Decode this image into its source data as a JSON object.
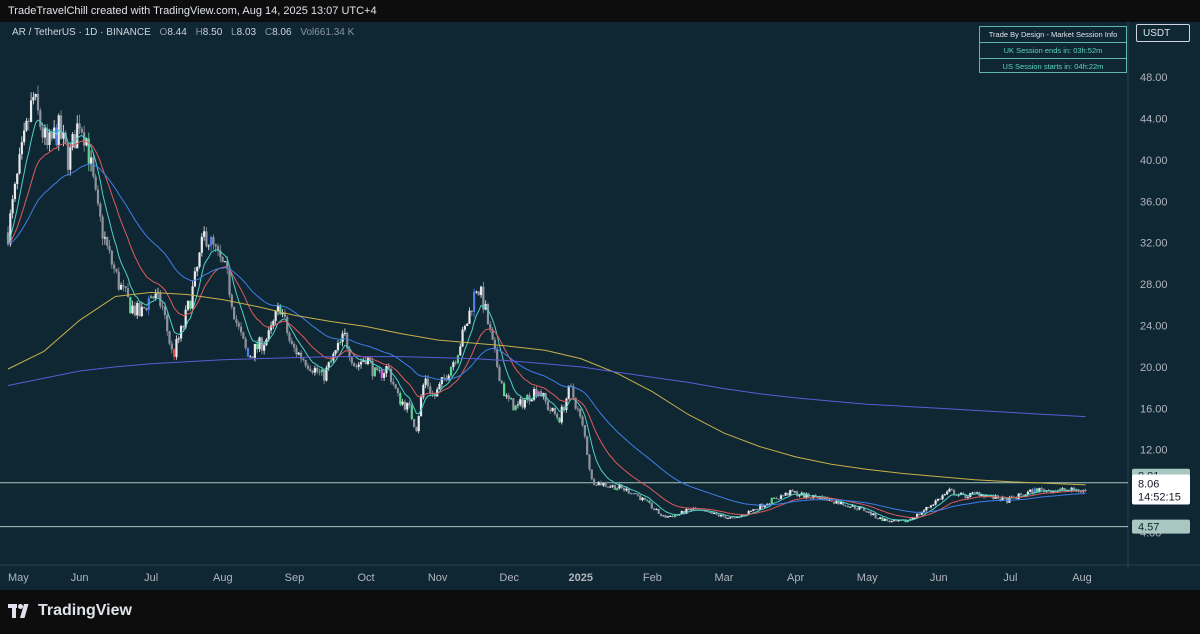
{
  "header": {
    "attribution": "TradeTravelChill created with TradingView.com, Aug 14, 2025 13:07 UTC+4"
  },
  "symbol_bar": {
    "symbol": "AR / TetherUS · 1D · BINANCE",
    "open_label": "O",
    "open": "8.44",
    "high_label": "H",
    "high": "8.50",
    "low_label": "L",
    "low": "8.03",
    "close_label": "C",
    "close": "8.06",
    "vol_label": "Vol",
    "vol": "661.34 K"
  },
  "currency": "USDT",
  "session_info": {
    "title": "Trade By Design - Market Session Info",
    "uk": "UK Session ends in: 03h:52m",
    "us": "US Session starts in: 04h:22m"
  },
  "price_tags": {
    "level_high": "8.81",
    "last_price": "8.06",
    "countdown": "14:52:15",
    "level_low": "4.57"
  },
  "footer": {
    "brand": "TradingView"
  },
  "chart_data": {
    "type": "candlestick",
    "y_axis": {
      "ticks": [
        "48.00",
        "44.00",
        "40.00",
        "36.00",
        "32.00",
        "28.00",
        "24.00",
        "20.00",
        "16.00",
        "12.00",
        "4.00"
      ],
      "tick_values": [
        48,
        44,
        40,
        36,
        32,
        28,
        24,
        20,
        16,
        12,
        4
      ],
      "range": [
        2.5,
        51.3
      ]
    },
    "x_axis": {
      "labels": [
        "May",
        "Jun",
        "Jul",
        "Aug",
        "Sep",
        "Oct",
        "Nov",
        "Dec",
        "2025",
        "Feb",
        "Mar",
        "Apr",
        "May",
        "Jun",
        "Jul",
        "Aug"
      ],
      "positions_in_months": [
        0,
        1,
        2,
        3,
        4,
        5,
        6,
        7,
        8,
        9,
        10,
        11,
        12,
        13,
        14,
        15
      ],
      "bold_label": "2025"
    },
    "span_months": [
      0,
      15.5
    ],
    "horizontal_levels": [
      8.81,
      4.57
    ],
    "last_price": 8.06,
    "close_path": [
      [
        0.0,
        33
      ],
      [
        0.15,
        39
      ],
      [
        0.35,
        46
      ],
      [
        0.55,
        41
      ],
      [
        0.7,
        43
      ],
      [
        0.85,
        40
      ],
      [
        1.0,
        44
      ],
      [
        1.1,
        42
      ],
      [
        1.25,
        35
      ],
      [
        1.4,
        31
      ],
      [
        1.55,
        28
      ],
      [
        1.7,
        26
      ],
      [
        1.85,
        25
      ],
      [
        2.0,
        27
      ],
      [
        2.15,
        26
      ],
      [
        2.3,
        21
      ],
      [
        2.45,
        24
      ],
      [
        2.6,
        28
      ],
      [
        2.75,
        33
      ],
      [
        2.9,
        31
      ],
      [
        3.05,
        29
      ],
      [
        3.2,
        24
      ],
      [
        3.35,
        21
      ],
      [
        3.5,
        22
      ],
      [
        3.65,
        23
      ],
      [
        3.8,
        26
      ],
      [
        3.95,
        22
      ],
      [
        4.1,
        21
      ],
      [
        4.25,
        20
      ],
      [
        4.4,
        19
      ],
      [
        4.55,
        21
      ],
      [
        4.7,
        23
      ],
      [
        4.85,
        20
      ],
      [
        5.0,
        21
      ],
      [
        5.15,
        19
      ],
      [
        5.3,
        20
      ],
      [
        5.45,
        17
      ],
      [
        5.6,
        16
      ],
      [
        5.7,
        14
      ],
      [
        5.82,
        19
      ],
      [
        5.95,
        17
      ],
      [
        6.1,
        19
      ],
      [
        6.25,
        21
      ],
      [
        6.4,
        24
      ],
      [
        6.55,
        28
      ],
      [
        6.65,
        26
      ],
      [
        6.8,
        21
      ],
      [
        6.95,
        17
      ],
      [
        7.1,
        16
      ],
      [
        7.25,
        17
      ],
      [
        7.4,
        18
      ],
      [
        7.55,
        16
      ],
      [
        7.7,
        15
      ],
      [
        7.85,
        18
      ],
      [
        7.95,
        16
      ],
      [
        8.05,
        13.5
      ],
      [
        8.15,
        9
      ],
      [
        8.35,
        8.6
      ],
      [
        8.55,
        8.3
      ],
      [
        8.75,
        7.8
      ],
      [
        8.95,
        6.7
      ],
      [
        9.15,
        5.5
      ],
      [
        9.35,
        5.7
      ],
      [
        9.55,
        6.3
      ],
      [
        9.75,
        5.9
      ],
      [
        9.95,
        5.6
      ],
      [
        10.15,
        5.3
      ],
      [
        10.35,
        6.0
      ],
      [
        10.55,
        6.7
      ],
      [
        10.75,
        7.4
      ],
      [
        10.95,
        7.9
      ],
      [
        11.15,
        7.5
      ],
      [
        11.35,
        7.4
      ],
      [
        11.55,
        7.0
      ],
      [
        11.75,
        6.6
      ],
      [
        11.95,
        6.2
      ],
      [
        12.15,
        5.4
      ],
      [
        12.35,
        5.0
      ],
      [
        12.55,
        5.1
      ],
      [
        12.75,
        5.9
      ],
      [
        12.95,
        7.0
      ],
      [
        13.15,
        8.0
      ],
      [
        13.35,
        7.5
      ],
      [
        13.55,
        7.8
      ],
      [
        13.75,
        7.4
      ],
      [
        13.95,
        7.1
      ],
      [
        14.15,
        7.6
      ],
      [
        14.35,
        8.1
      ],
      [
        15.05,
        8.06
      ]
    ],
    "moving_averages": [
      {
        "name": "",
        "color": "#c8b04a",
        "points": [
          [
            0,
            19.8
          ],
          [
            0.5,
            21.5
          ],
          [
            1.0,
            24.5
          ],
          [
            1.5,
            26.8
          ],
          [
            2.0,
            27.2
          ],
          [
            2.5,
            27.0
          ],
          [
            3.0,
            26.5
          ],
          [
            3.5,
            25.8
          ],
          [
            4.0,
            25.0
          ],
          [
            4.5,
            24.4
          ],
          [
            5.0,
            23.9
          ],
          [
            5.5,
            23.2
          ],
          [
            6.0,
            22.6
          ],
          [
            6.5,
            22.3
          ],
          [
            7.0,
            22.0
          ],
          [
            7.5,
            21.6
          ],
          [
            8.0,
            20.8
          ],
          [
            8.5,
            19.4
          ],
          [
            9.0,
            17.6
          ],
          [
            9.5,
            15.4
          ],
          [
            10.0,
            13.6
          ],
          [
            10.5,
            12.3
          ],
          [
            11.0,
            11.3
          ],
          [
            11.5,
            10.6
          ],
          [
            12.0,
            10.1
          ],
          [
            12.5,
            9.7
          ],
          [
            13.0,
            9.4
          ],
          [
            13.5,
            9.1
          ],
          [
            14.0,
            8.9
          ],
          [
            14.5,
            8.75
          ],
          [
            15.05,
            8.6
          ]
        ]
      },
      {
        "name": "",
        "color": "#5b5bd6",
        "points": [
          [
            0,
            18.2
          ],
          [
            0.5,
            18.9
          ],
          [
            1.0,
            19.6
          ],
          [
            1.5,
            20.0
          ],
          [
            2.0,
            20.3
          ],
          [
            2.5,
            20.5
          ],
          [
            3.0,
            20.7
          ],
          [
            3.5,
            20.8
          ],
          [
            4.0,
            20.9
          ],
          [
            4.5,
            21.0
          ],
          [
            5.0,
            21.0
          ],
          [
            5.5,
            21.0
          ],
          [
            6.0,
            20.9
          ],
          [
            6.5,
            20.8
          ],
          [
            7.0,
            20.6
          ],
          [
            7.5,
            20.3
          ],
          [
            8.0,
            20.0
          ],
          [
            8.5,
            19.5
          ],
          [
            9.0,
            19.0
          ],
          [
            9.5,
            18.5
          ],
          [
            10.0,
            17.9
          ],
          [
            10.5,
            17.4
          ],
          [
            11.0,
            17.0
          ],
          [
            11.5,
            16.7
          ],
          [
            12.0,
            16.4
          ],
          [
            12.5,
            16.2
          ],
          [
            13.0,
            16.0
          ],
          [
            13.5,
            15.8
          ],
          [
            14.0,
            15.6
          ],
          [
            14.5,
            15.4
          ],
          [
            15.05,
            15.2
          ]
        ]
      }
    ]
  }
}
